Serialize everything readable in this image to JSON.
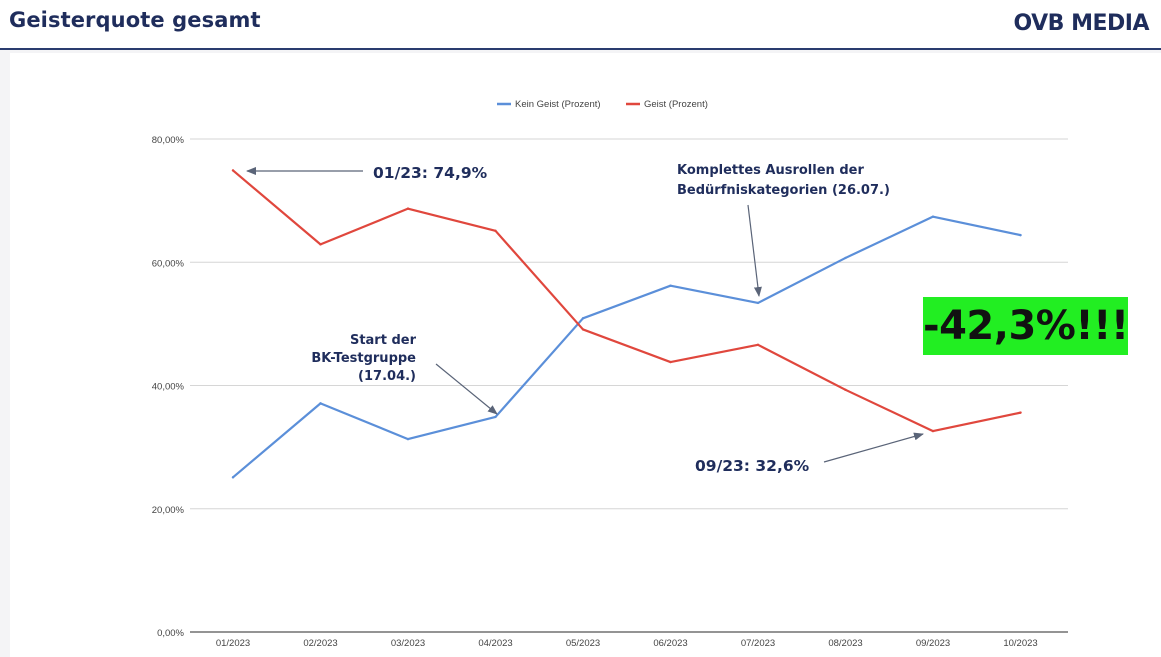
{
  "header": {
    "title": "Geisterquote gesamt",
    "logo_text": "OVB MEDIA"
  },
  "chart_data": {
    "type": "line",
    "categories": [
      "01/2023",
      "02/2023",
      "03/2023",
      "04/2023",
      "05/2023",
      "06/2023",
      "07/2023",
      "08/2023",
      "09/2023",
      "10/2023"
    ],
    "series": [
      {
        "name": "Kein Geist (Prozent)",
        "color": "#5b8fd9",
        "values": [
          25.1,
          37.1,
          31.3,
          34.9,
          50.9,
          56.2,
          53.4,
          60.7,
          67.4,
          64.4
        ]
      },
      {
        "name": "Geist (Prozent)",
        "color": "#e0473d",
        "values": [
          74.9,
          62.9,
          68.7,
          65.1,
          49.1,
          43.8,
          46.6,
          39.3,
          32.6,
          35.6
        ]
      }
    ],
    "ylim": [
      0,
      80
    ],
    "yticks": [
      0,
      20,
      40,
      60,
      80
    ],
    "ytick_labels": [
      "0,00%",
      "20,00%",
      "40,00%",
      "60,00%",
      "80,00%"
    ],
    "grid": true,
    "legend_position": "top-center",
    "annotations": [
      {
        "text": "01/23: 74,9%"
      },
      {
        "text": "Komplettes Ausrollen der\nBedürfniskategorien (26.07.)"
      },
      {
        "text": "Start der\nBK-Testgruppe\n(17.04.)"
      },
      {
        "text": "09/23: 32,6%"
      }
    ]
  },
  "highlight": {
    "text": "-42,3%!!!",
    "background": "#22ee22"
  }
}
